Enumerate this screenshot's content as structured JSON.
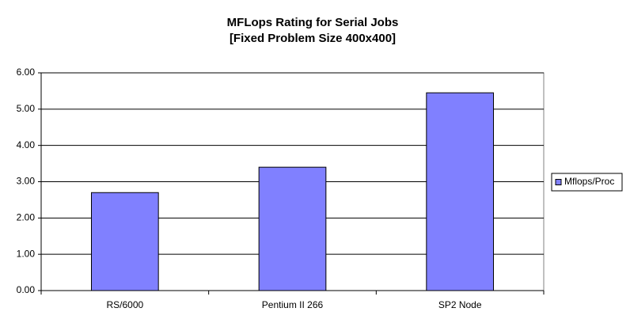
{
  "chart_data": {
    "type": "bar",
    "title": "MFLops Rating for Serial Jobs",
    "subtitle": "[Fixed Problem Size 400x400]",
    "categories": [
      "RS/6000",
      "Pentium II 266",
      "SP2 Node"
    ],
    "series": [
      {
        "name": "Mflops/Proc",
        "color": "#8080ff",
        "values": [
          2.7,
          3.4,
          5.45
        ]
      }
    ],
    "ylim": [
      0,
      6
    ],
    "yticks": [
      {
        "value": 0,
        "label": "0.00"
      },
      {
        "value": 1,
        "label": "1.00"
      },
      {
        "value": 2,
        "label": "2.00"
      },
      {
        "value": 3,
        "label": "3.00"
      },
      {
        "value": 4,
        "label": "4.00"
      },
      {
        "value": 5,
        "label": "5.00"
      },
      {
        "value": 6,
        "label": "6.00"
      }
    ],
    "grid": true,
    "legend": "right"
  }
}
